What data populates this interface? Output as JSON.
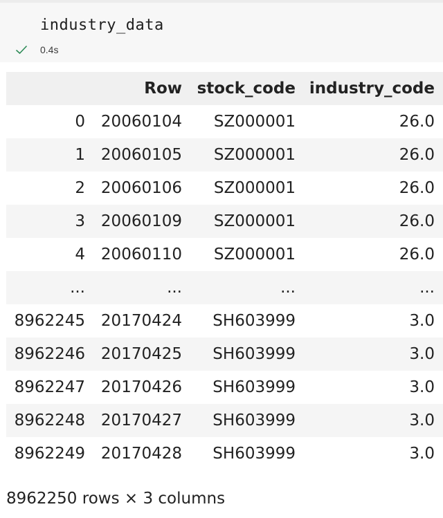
{
  "cell": {
    "code": "industry_data",
    "status_icon": "check-icon",
    "exec_time": "0.4s"
  },
  "table": {
    "index_header": "",
    "columns": [
      "Row",
      "stock_code",
      "industry_code"
    ],
    "rows": [
      {
        "index": "0",
        "values": [
          "20060104",
          "SZ000001",
          "26.0"
        ]
      },
      {
        "index": "1",
        "values": [
          "20060105",
          "SZ000001",
          "26.0"
        ]
      },
      {
        "index": "2",
        "values": [
          "20060106",
          "SZ000001",
          "26.0"
        ]
      },
      {
        "index": "3",
        "values": [
          "20060109",
          "SZ000001",
          "26.0"
        ]
      },
      {
        "index": "4",
        "values": [
          "20060110",
          "SZ000001",
          "26.0"
        ]
      },
      {
        "index": "...",
        "values": [
          "...",
          "...",
          "..."
        ]
      },
      {
        "index": "8962245",
        "values": [
          "20170424",
          "SH603999",
          "3.0"
        ]
      },
      {
        "index": "8962246",
        "values": [
          "20170425",
          "SH603999",
          "3.0"
        ]
      },
      {
        "index": "8962247",
        "values": [
          "20170426",
          "SH603999",
          "3.0"
        ]
      },
      {
        "index": "8962248",
        "values": [
          "20170427",
          "SH603999",
          "3.0"
        ]
      },
      {
        "index": "8962249",
        "values": [
          "20170428",
          "SH603999",
          "3.0"
        ]
      }
    ]
  },
  "footer": "8962250 rows × 3 columns",
  "colors": {
    "check": "#2e8b57",
    "header_bg": "#f0f0f0",
    "stripe_bg": "#f5f5f5"
  }
}
